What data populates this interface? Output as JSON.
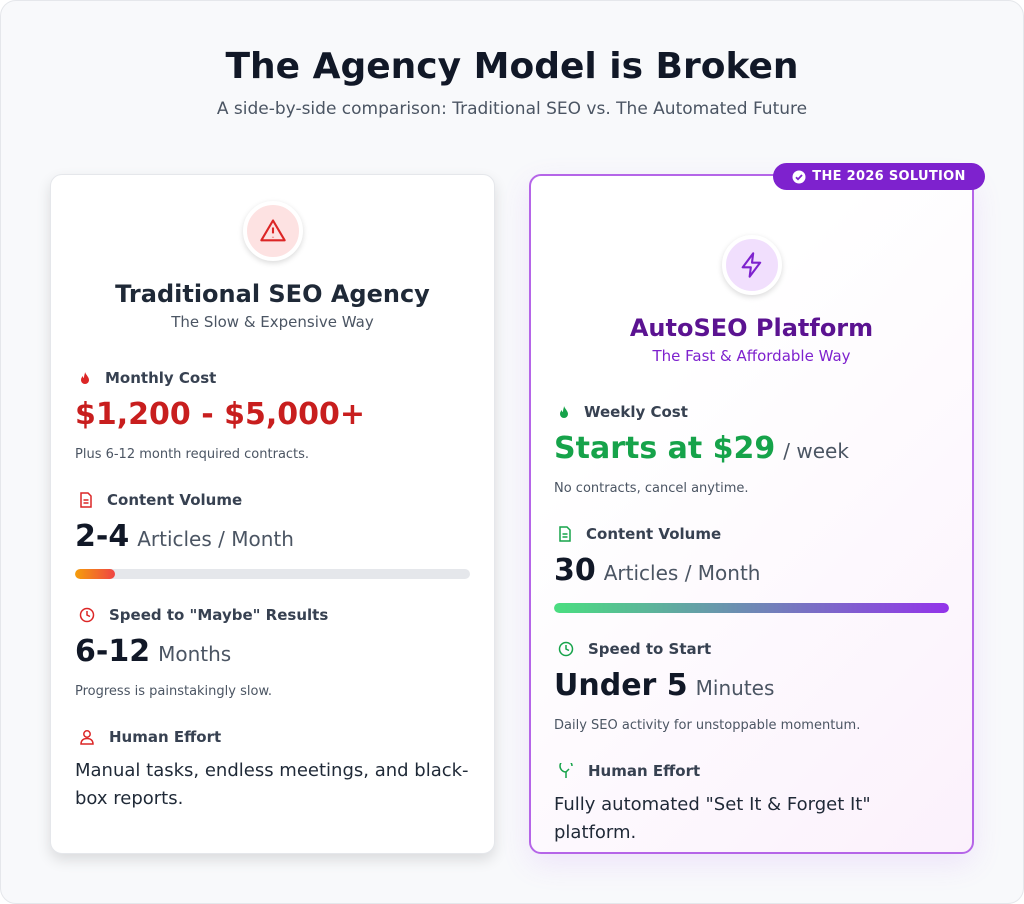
{
  "header": {
    "title": "The Agency Model is Broken",
    "subtitle": "A side-by-side comparison: Traditional SEO vs. The Automated Future"
  },
  "cards": [
    {
      "title": "Traditional SEO Agency",
      "subtitle": "The Slow & Expensive Way",
      "sections": [
        {
          "label": "Monthly Cost",
          "value": "$1,200 - $5,000+",
          "note": "Plus 6-12 month required contracts."
        },
        {
          "label": "Content Volume",
          "value": "2-4",
          "unit": "Articles / Month"
        },
        {
          "label": "Speed to \"Maybe\" Results",
          "value": "6-12",
          "unit": "Months",
          "note": "Progress is painstakingly slow."
        },
        {
          "label": "Human Effort",
          "text": "Manual tasks, endless meetings, and black-box reports."
        }
      ]
    },
    {
      "badge": "THE 2026 SOLUTION",
      "title": "AutoSEO Platform",
      "subtitle": "The Fast & Affordable Way",
      "sections": [
        {
          "label": "Weekly Cost",
          "value": "Starts at $29",
          "unit": "/ week",
          "note": "No contracts, cancel anytime."
        },
        {
          "label": "Content Volume",
          "value": "30",
          "unit": "Articles / Month"
        },
        {
          "label": "Speed to Start",
          "value": "Under 5",
          "unit": "Minutes",
          "note": "Daily SEO activity for unstoppable momentum."
        },
        {
          "label": "Human Effort",
          "text": "Fully automated \"Set It & Forget It\" platform."
        }
      ]
    }
  ]
}
